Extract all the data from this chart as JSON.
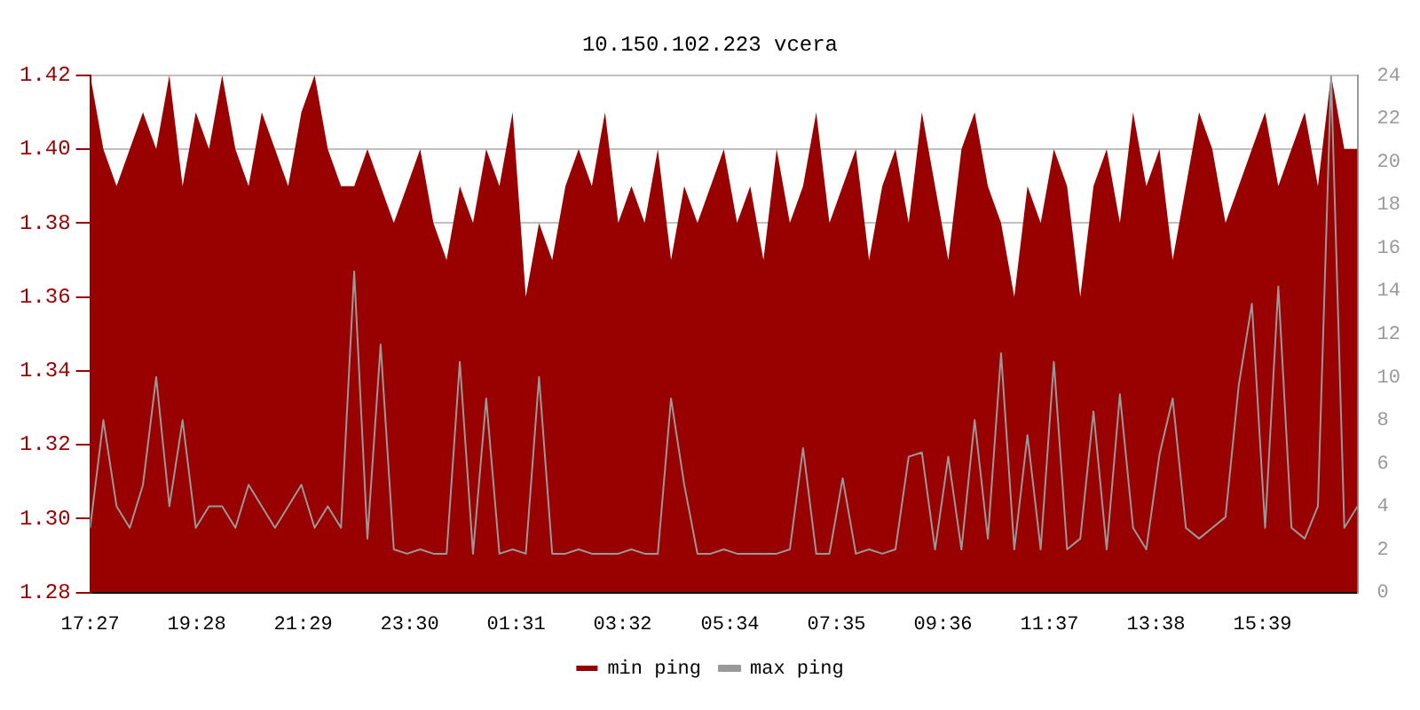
{
  "chart_data": {
    "type": "area",
    "title": "10.150.102.223 vcera",
    "x": [
      "--01-01T17:27",
      "--01-01T17:42",
      "--01-01T17:57",
      "--01-01T18:12",
      "--01-01T18:27",
      "--01-01T18:42",
      "--01-01T18:57",
      "--01-01T19:12",
      "--01-01T19:27",
      "--01-01T19:42",
      "--01-01T19:57",
      "--01-01T20:12",
      "--01-01T20:27",
      "--01-01T20:42",
      "--01-01T20:57",
      "--01-01T21:12",
      "--01-01T21:27",
      "--01-01T21:42",
      "--01-01T21:57",
      "--01-01T22:12",
      "--01-01T22:27",
      "--01-01T22:42",
      "--01-01T22:57",
      "--01-01T23:12",
      "--01-01T23:27",
      "--01-01T23:42",
      "--01-01T23:57",
      "--01-02T00:12",
      "--01-02T00:27",
      "--01-02T00:42",
      "--01-02T00:57",
      "--01-02T01:12",
      "--01-02T01:27",
      "--01-02T01:42",
      "--01-02T01:57",
      "--01-02T02:12",
      "--01-02T02:27",
      "--01-02T02:42",
      "--01-02T02:57",
      "--01-02T03:12",
      "--01-02T03:27",
      "--01-02T03:42",
      "--01-02T03:57",
      "--01-02T04:12",
      "--01-02T04:27",
      "--01-02T04:42",
      "--01-02T04:57",
      "--01-02T05:12",
      "--01-02T05:27",
      "--01-02T05:42",
      "--01-02T05:57",
      "--01-02T06:12",
      "--01-02T06:27",
      "--01-02T06:42",
      "--01-02T06:57",
      "--01-02T07:12",
      "--01-02T07:27",
      "--01-02T07:42",
      "--01-02T07:57",
      "--01-02T08:12",
      "--01-02T08:27",
      "--01-02T08:42",
      "--01-02T08:57",
      "--01-02T09:12",
      "--01-02T09:27",
      "--01-02T09:42",
      "--01-02T09:57",
      "--01-02T10:12",
      "--01-02T10:27",
      "--01-02T10:42",
      "--01-02T10:57",
      "--01-02T11:12",
      "--01-02T11:27",
      "--01-02T11:42",
      "--01-02T11:57",
      "--01-02T12:12",
      "--01-02T12:27",
      "--01-02T12:42",
      "--01-02T12:57",
      "--01-02T13:12",
      "--01-02T13:27",
      "--01-02T13:42",
      "--01-02T13:57",
      "--01-02T14:12",
      "--01-02T14:27",
      "--01-02T14:42",
      "--01-02T14:57",
      "--01-02T15:12",
      "--01-02T15:27",
      "--01-02T15:42",
      "--01-02T15:57",
      "--01-02T16:12",
      "--01-02T16:27",
      "--01-02T16:42",
      "--01-02T16:57",
      "--01-02T17:12",
      "--01-02T17:27"
    ],
    "series": [
      {
        "name": "min ping",
        "color": "#990000",
        "values": [
          1.42,
          1.4,
          1.39,
          1.4,
          1.41,
          1.4,
          1.42,
          1.39,
          1.41,
          1.4,
          1.42,
          1.4,
          1.39,
          1.41,
          1.4,
          1.39,
          1.41,
          1.42,
          1.4,
          1.39,
          1.39,
          1.4,
          1.39,
          1.38,
          1.39,
          1.4,
          1.38,
          1.37,
          1.39,
          1.38,
          1.4,
          1.39,
          1.41,
          1.36,
          1.38,
          1.37,
          1.39,
          1.4,
          1.39,
          1.41,
          1.38,
          1.39,
          1.38,
          1.4,
          1.37,
          1.39,
          1.38,
          1.39,
          1.4,
          1.38,
          1.39,
          1.37,
          1.4,
          1.38,
          1.39,
          1.41,
          1.38,
          1.39,
          1.4,
          1.37,
          1.39,
          1.4,
          1.38,
          1.41,
          1.39,
          1.37,
          1.4,
          1.41,
          1.39,
          1.38,
          1.36,
          1.39,
          1.38,
          1.4,
          1.39,
          1.36,
          1.39,
          1.4,
          1.38,
          1.41,
          1.39,
          1.4,
          1.37,
          1.39,
          1.41,
          1.4,
          1.38,
          1.39,
          1.4,
          1.41,
          1.39,
          1.4,
          1.41,
          1.39,
          1.42,
          1.4,
          1.4
        ]
      },
      {
        "name": "max ping",
        "type": "line",
        "axis": "y2",
        "color": "#999999",
        "values": [
          3,
          8,
          4,
          3,
          5,
          10,
          4,
          8,
          3,
          4,
          4,
          3,
          5,
          4,
          3,
          4,
          5,
          3,
          4,
          3,
          14.9,
          2.5,
          11.5,
          2,
          1.8,
          2,
          1.8,
          1.8,
          10.7,
          1.8,
          9,
          1.8,
          2,
          1.8,
          10,
          1.8,
          1.8,
          2,
          1.8,
          1.8,
          1.8,
          2,
          1.8,
          1.8,
          9,
          5,
          1.8,
          1.8,
          2,
          1.8,
          1.8,
          1.8,
          1.8,
          2,
          6.7,
          1.8,
          1.8,
          5.3,
          1.8,
          2,
          1.8,
          2,
          6.3,
          6.5,
          2,
          6.3,
          2,
          8,
          2.5,
          11.1,
          2,
          7.3,
          2,
          10.7,
          2,
          2.5,
          8.4,
          2,
          9.2,
          3,
          2,
          6.4,
          9,
          3,
          2.5,
          3,
          3.5,
          9.6,
          13.4,
          3,
          14.2,
          3,
          2.5,
          4,
          24,
          3,
          4
        ]
      }
    ],
    "xlim": [
      "--01-01T17:27",
      "--01-02T17:27"
    ],
    "xticks": [
      {
        "value": "--01-01T17:27",
        "label": "17:27"
      },
      {
        "value": "--01-01T19:28",
        "label": "19:28"
      },
      {
        "value": "--01-01T21:29",
        "label": "21:29"
      },
      {
        "value": "--01-01T23:30",
        "label": "23:30"
      },
      {
        "value": "--01-02T01:31",
        "label": "01:31"
      },
      {
        "value": "--01-02T03:32",
        "label": "03:32"
      },
      {
        "value": "--01-02T05:34",
        "label": "05:34"
      },
      {
        "value": "--01-02T07:35",
        "label": "07:35"
      },
      {
        "value": "--01-02T09:36",
        "label": "09:36"
      },
      {
        "value": "--01-02T11:37",
        "label": "11:37"
      },
      {
        "value": "--01-02T13:38",
        "label": "13:38"
      },
      {
        "value": "--01-02T15:39",
        "label": "15:39"
      }
    ],
    "ylim": [
      1.28,
      1.42
    ],
    "yticks": [
      {
        "value": 1.28,
        "label": "1.28"
      },
      {
        "value": 1.3,
        "label": "1.30"
      },
      {
        "value": 1.32,
        "label": "1.32"
      },
      {
        "value": 1.34,
        "label": "1.34"
      },
      {
        "value": 1.36,
        "label": "1.36"
      },
      {
        "value": 1.38,
        "label": "1.38"
      },
      {
        "value": 1.4,
        "label": "1.40"
      },
      {
        "value": 1.42,
        "label": "1.42"
      }
    ],
    "y2lim": [
      0,
      24
    ],
    "y2ticks": [
      0,
      2,
      4,
      6,
      8,
      10,
      12,
      14,
      16,
      18,
      20,
      22,
      24
    ],
    "grid": "y",
    "legend": "bottom"
  }
}
